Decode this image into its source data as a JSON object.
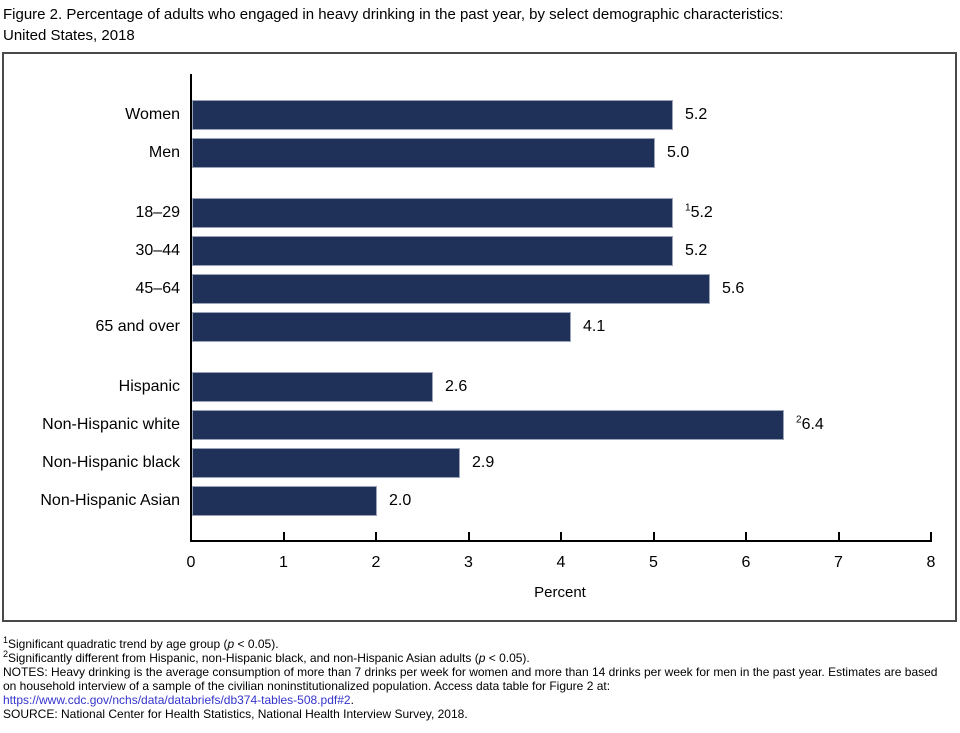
{
  "title": {
    "line1": "Figure 2. Percentage of adults who engaged in heavy drinking in the past year, by select demographic characteristics:",
    "line2": "United States, 2018"
  },
  "chart_data": {
    "type": "bar",
    "orientation": "horizontal",
    "bar_color": "#1f3158",
    "xlabel": "Percent",
    "xlim": [
      0,
      8
    ],
    "tick_labels": [
      "0",
      "1",
      "2",
      "3",
      "4",
      "5",
      "6",
      "7",
      "8"
    ],
    "categories": [
      "Women",
      "Men",
      "18–29",
      "30–44",
      "45–64",
      "65 and over",
      "Hispanic",
      "Non-Hispanic white",
      "Non-Hispanic black",
      "Non-Hispanic Asian"
    ],
    "values": [
      5.2,
      5.0,
      5.2,
      5.2,
      5.6,
      4.1,
      2.6,
      6.4,
      2.9,
      2.0
    ],
    "rows": [
      {
        "label": "Women",
        "value": 5.2,
        "display": "5.2",
        "sup": "",
        "group": 0
      },
      {
        "label": "Men",
        "value": 5.0,
        "display": "5.0",
        "sup": "",
        "group": 0
      },
      {
        "label": "18–29",
        "value": 5.2,
        "display": "5.2",
        "sup": "1",
        "group": 1
      },
      {
        "label": "30–44",
        "value": 5.2,
        "display": "5.2",
        "sup": "",
        "group": 1
      },
      {
        "label": "45–64",
        "value": 5.6,
        "display": "5.6",
        "sup": "",
        "group": 1
      },
      {
        "label": "65 and over",
        "value": 4.1,
        "display": "4.1",
        "sup": "",
        "group": 1
      },
      {
        "label": "Hispanic",
        "value": 2.6,
        "display": "2.6",
        "sup": "",
        "group": 2
      },
      {
        "label": "Non-Hispanic white",
        "value": 6.4,
        "display": "6.4",
        "sup": "2",
        "group": 2
      },
      {
        "label": "Non-Hispanic black",
        "value": 2.9,
        "display": "2.9",
        "sup": "",
        "group": 2
      },
      {
        "label": "Non-Hispanic Asian",
        "value": 2.0,
        "display": "2.0",
        "sup": "",
        "group": 2
      }
    ]
  },
  "footnotes": {
    "fn1": {
      "sup": "1",
      "before": "Significant quadratic trend by age group (",
      "p": "p",
      "after": " < 0.05)."
    },
    "fn2": {
      "sup": "2",
      "before": "Significantly different from Hispanic, non-Hispanic black, and non-Hispanic Asian adults (",
      "p": "p",
      "after": " < 0.05)."
    },
    "notes": "NOTES: Heavy drinking is the average consumption of more than 7 drinks per week for women and more than 14 drinks per week for men in the past year. Estimates are based on household interview of a sample of the civilian noninstitutionalized population. Access data table for Figure 2 at:",
    "link": "https://www.cdc.gov/nchs/data/databriefs/db374-tables-508.pdf#2",
    "link_suffix": ".",
    "source": "SOURCE: National Center for Health Statistics, National Health Interview Survey, 2018."
  }
}
